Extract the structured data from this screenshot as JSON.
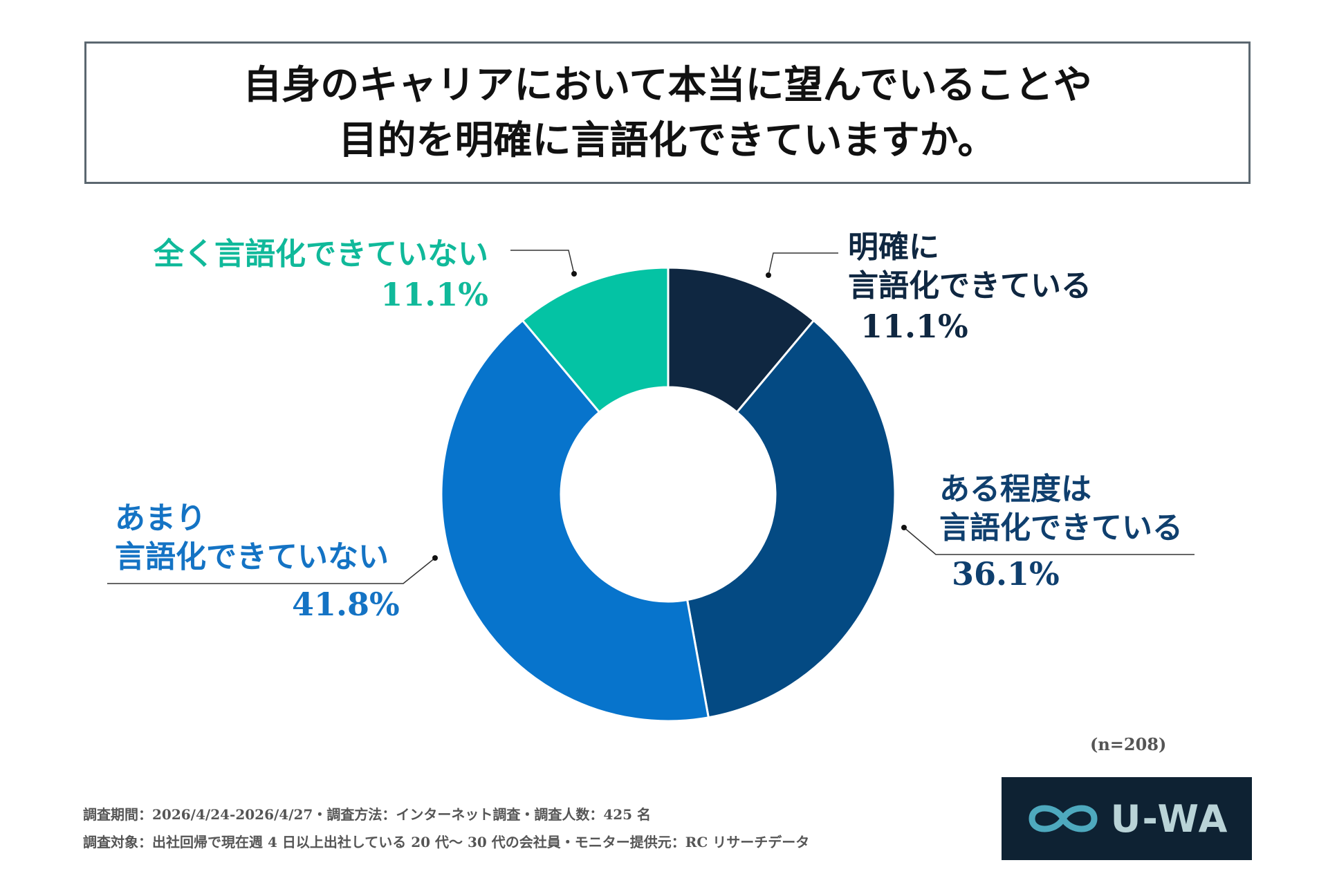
{
  "title": {
    "line1": "自身のキャリアにおいて本当に望んでいることや",
    "line2": "目的を明確に言語化できていますか。"
  },
  "chart_data": {
    "type": "pie",
    "donut": true,
    "start_angle_deg": 0,
    "slices": [
      {
        "label": "明確に言語化できている",
        "label_lines": [
          "明確に",
          "言語化できている"
        ],
        "value": 11.1,
        "display": "11.1%",
        "color": "#0f2741"
      },
      {
        "label": "ある程度は言語化できている",
        "label_lines": [
          "ある程度は",
          "言語化できている"
        ],
        "value": 36.1,
        "display": "36.1%",
        "color": "#044a83"
      },
      {
        "label": "あまり言語化できていない",
        "label_lines": [
          "あまり",
          "言語化できていない"
        ],
        "value": 41.8,
        "display": "41.8%",
        "color": "#0774cc"
      },
      {
        "label": "全く言語化できていない",
        "label_lines": [
          "全く言語化できていない"
        ],
        "value": 11.1,
        "display": "11.1%",
        "color": "#04c3a4"
      }
    ],
    "sample_size": "(n=208)"
  },
  "label_colors": [
    "#0f2741",
    "#0f3f6e",
    "#1473c4",
    "#10b99a"
  ],
  "footer": {
    "line1": "調査期間：2026/4/24-2026/4/27・調査方法：インターネット調査・調査人数：425 名",
    "line2": "調査対象：出社回帰で現在週 4 日以上出社している 20 代〜 30 代の会社員・モニター提供元：RC リサーチデータ"
  },
  "logo": {
    "icon": "infinity-icon",
    "text": "U-WA",
    "background": "#0e2233",
    "color": "#b9d3d7"
  }
}
